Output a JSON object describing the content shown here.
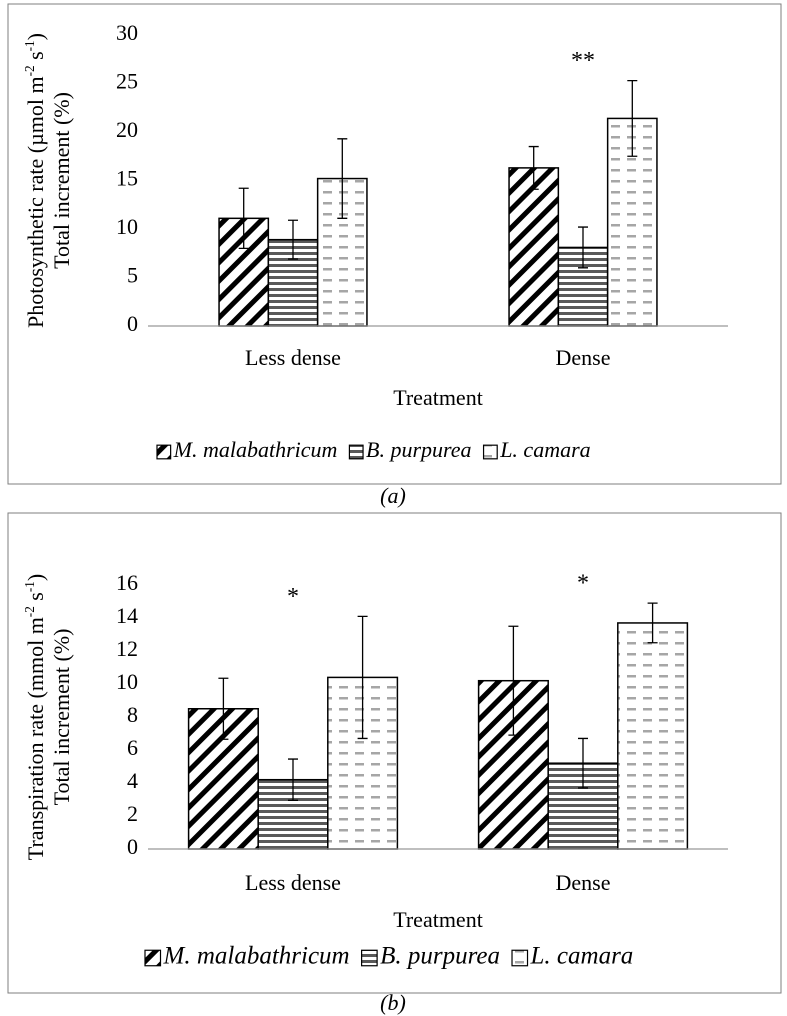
{
  "chart_data": [
    {
      "type": "bar",
      "caption": "(a)",
      "xlabel": "Treatment",
      "ylabel": [
        [
          "Photosynthetic rate (µmol m",
          "-2",
          " s",
          "-1",
          ")"
        ],
        [
          "Total increment (%)"
        ]
      ],
      "categories": [
        "Less dense",
        "Dense"
      ],
      "ylim": [
        0,
        30
      ],
      "yticks": [
        0,
        5,
        10,
        15,
        20,
        25,
        30
      ],
      "series": [
        {
          "name": "M. malabathricum",
          "color": "#000000",
          "pattern": "diagonal",
          "values": [
            11.1,
            16.3
          ],
          "errors": [
            3.1,
            2.2
          ]
        },
        {
          "name": "B. purpurea",
          "color": "#595959",
          "pattern": "horizontal",
          "values": [
            8.9,
            8.1
          ],
          "errors": [
            2.0,
            2.1
          ]
        },
        {
          "name": "L. camara",
          "color": "#a6a6a6",
          "pattern": "dashed",
          "values": [
            15.2,
            21.4
          ],
          "errors": [
            4.1,
            3.9
          ]
        }
      ],
      "annotations": [
        {
          "category": "Dense",
          "text": "**"
        }
      ]
    },
    {
      "type": "bar",
      "caption": "(b)",
      "xlabel": "Treatment",
      "ylabel": [
        [
          "Transpiration rate (mmol m",
          "-2",
          " s",
          "-1",
          ")"
        ],
        [
          "Total increment (%)"
        ]
      ],
      "categories": [
        "Less dense",
        "Dense"
      ],
      "ylim": [
        0,
        16
      ],
      "yticks": [
        0,
        2,
        4,
        6,
        8,
        10,
        12,
        14,
        16
      ],
      "series": [
        {
          "name": "M. malabathricum",
          "color": "#000000",
          "pattern": "diagonal",
          "values": [
            8.5,
            10.2
          ],
          "errors": [
            1.85,
            3.3
          ]
        },
        {
          "name": "B. purpurea",
          "color": "#595959",
          "pattern": "horizontal",
          "values": [
            4.2,
            5.2
          ],
          "errors": [
            1.25,
            1.5
          ]
        },
        {
          "name": "L. camara",
          "color": "#a6a6a6",
          "pattern": "dashed",
          "values": [
            10.4,
            13.7
          ],
          "errors": [
            3.7,
            1.2
          ]
        }
      ],
      "annotations": [
        {
          "category": "Less dense",
          "text": "*"
        },
        {
          "category": "Dense",
          "text": "*"
        }
      ]
    }
  ]
}
